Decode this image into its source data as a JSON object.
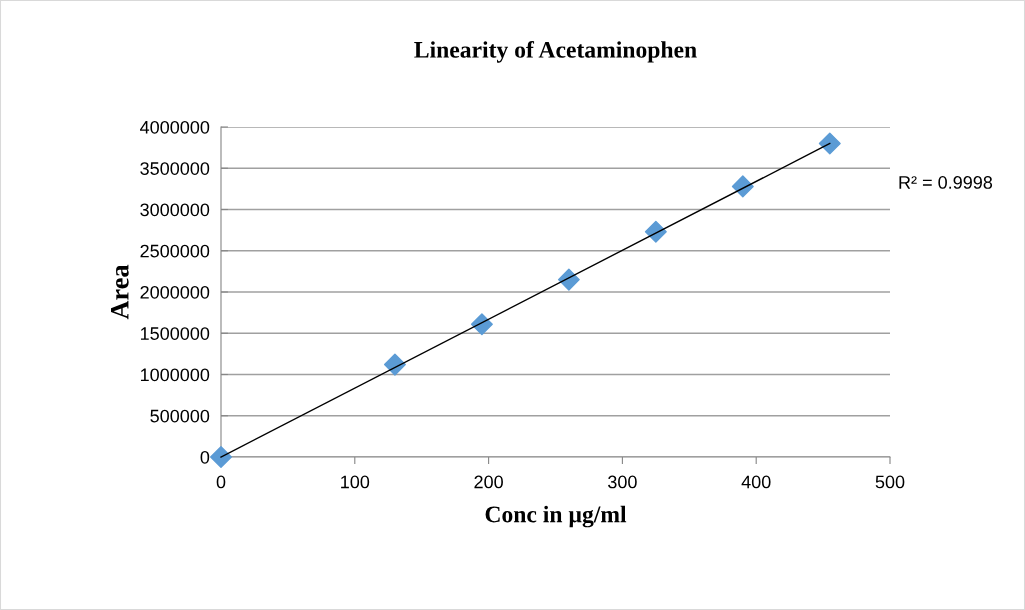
{
  "chart_data": {
    "type": "scatter",
    "title": "Linearity of Acetaminophen",
    "xlabel": "Conc in µg/ml",
    "ylabel": "Area",
    "x": [
      0,
      130,
      195,
      260,
      325,
      390,
      455
    ],
    "series": [
      {
        "color": "#5b9bd5",
        "values": [
          0,
          1120000,
          1610000,
          2150000,
          2730000,
          3280000,
          3800000
        ],
        "marker": "diamond"
      },
      {
        "type": "line",
        "color": "#000000",
        "x": [
          0,
          455
        ],
        "values": [
          0,
          3800000
        ],
        "marker": "none",
        "line_style": "solid"
      }
    ],
    "annotations": [
      "R² = 0.9998"
    ],
    "xlim": [
      0,
      500
    ],
    "xticks": [
      0,
      100,
      200,
      300,
      400,
      500
    ],
    "ylim": [
      0,
      4000000
    ],
    "yticks": [
      0,
      500000,
      1000000,
      1500000,
      2000000,
      2500000,
      3000000,
      3500000,
      4000000
    ],
    "grid": "y",
    "legend": false
  }
}
